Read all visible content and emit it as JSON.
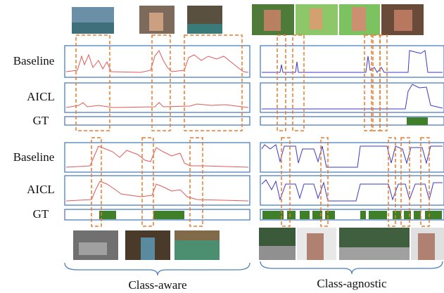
{
  "row_labels": [
    "Baseline",
    "AICL",
    "GT",
    "Baseline",
    "AICL",
    "GT"
  ],
  "captions": [
    "Class-aware",
    "Class-agnostic"
  ]
}
